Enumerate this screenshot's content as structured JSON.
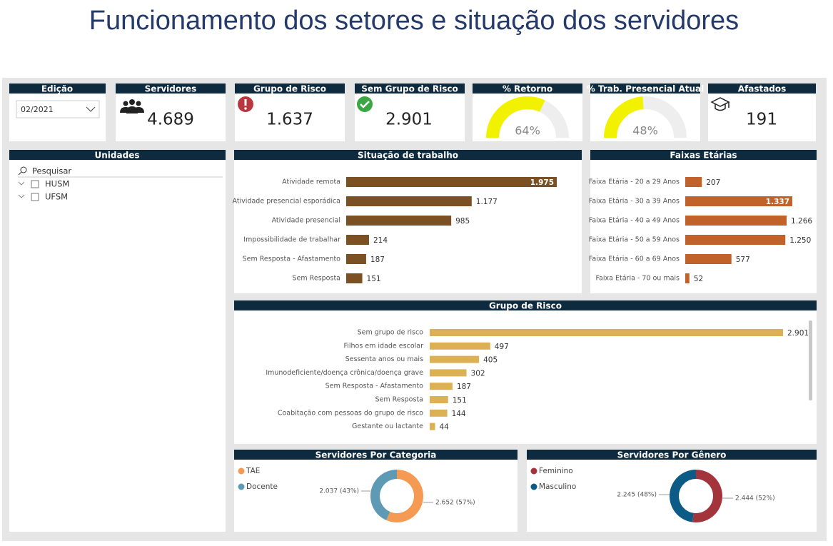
{
  "title": "Funcionamento dos setores e situação dos servidores",
  "edition": {
    "title": "Edição",
    "selected": "02/2021"
  },
  "cards": [
    {
      "title": "Servidores",
      "value": "4.689"
    },
    {
      "title": "Grupo de Risco",
      "value": "1.637"
    },
    {
      "title": "Sem Grupo de Risco",
      "value": "2.901"
    },
    {
      "title": "Afastados",
      "value": "191"
    }
  ],
  "units": {
    "title": "Unidades",
    "search_placeholder": "Pesquisar",
    "items": [
      "HUSM",
      "UFSM"
    ]
  },
  "chart_data": [
    {
      "type": "gauge",
      "title": "% Retorno",
      "values": [
        64
      ],
      "value_labels": [
        "64%"
      ],
      "ylim": [
        0,
        100
      ],
      "color": "#f2f200"
    },
    {
      "type": "gauge",
      "title": "% Trab. Presencial Atual",
      "values": [
        48
      ],
      "value_labels": [
        "48%"
      ],
      "ylim": [
        0,
        100
      ],
      "color": "#f2f200"
    },
    {
      "type": "bar",
      "title": "Situação de trabalho",
      "categories": [
        "Atividade remota",
        "Atividade presencial esporádica",
        "Atividade presencial",
        "Impossibilidade de trabalhar",
        "Sem Resposta - Afastamento",
        "Sem Resposta"
      ],
      "values": [
        1975,
        1177,
        985,
        214,
        187,
        151
      ],
      "value_labels": [
        "1.975",
        "1.177",
        "985",
        "214",
        "187",
        "151"
      ],
      "color": "#7b5124"
    },
    {
      "type": "bar",
      "title": "Faixas Etárias",
      "categories": [
        "Faixa Etária - 20 a 29 Anos",
        "Faixa Etária - 30 a 39 Anos",
        "Faixa Etária - 40 a 49 Anos",
        "Faixa Etária - 50 a 59 Anos",
        "Faixa Etária - 60 a 69 Anos",
        "Faixa Etária - 70 ou mais"
      ],
      "values": [
        207,
        1337,
        1266,
        1250,
        577,
        52
      ],
      "value_labels": [
        "207",
        "1.337",
        "1.266",
        "1.250",
        "577",
        "52"
      ],
      "color": "#c0622a"
    },
    {
      "type": "bar",
      "title": "Grupo de Risco",
      "categories": [
        "Sem grupo de risco",
        "Filhos em idade escolar",
        "Sessenta anos ou mais",
        "Imunodeficiente/doença crônica/doença grave",
        "Sem Resposta - Afastamento",
        "Sem Resposta",
        "Coabitação com pessoas do grupo de risco",
        "Gestante ou lactante"
      ],
      "values": [
        2901,
        497,
        405,
        302,
        187,
        151,
        144,
        44
      ],
      "value_labels": [
        "2.901",
        "497",
        "405",
        "302",
        "187",
        "151",
        "144",
        "44"
      ],
      "color": "#dcb155"
    },
    {
      "type": "pie",
      "title": "Servidores Por Categoria",
      "categories": [
        "TAE",
        "Docente"
      ],
      "values": [
        2652,
        2037
      ],
      "value_labels": [
        "2.652 (57%)",
        "2.037 (43%)"
      ],
      "colors": [
        "#f59a52",
        "#5f9ab5"
      ]
    },
    {
      "type": "pie",
      "title": "Servidores Por Gênero",
      "categories": [
        "Feminino",
        "Masculino"
      ],
      "values": [
        2444,
        2245
      ],
      "value_labels": [
        "2.444 (52%)",
        "2.245 (48%)"
      ],
      "colors": [
        "#a4343b",
        "#0c5b86"
      ]
    }
  ]
}
